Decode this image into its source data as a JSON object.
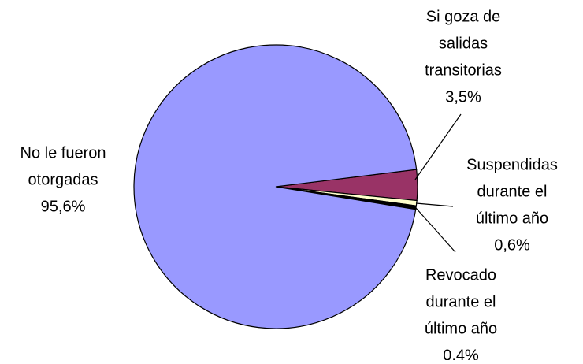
{
  "chart_data": {
    "type": "pie",
    "labels": [
      [
        "Si goza de",
        "salidas",
        "transitorias"
      ],
      [
        "Suspendidas",
        "durante el",
        "último año"
      ],
      [
        "Revocado",
        "durante el",
        "último año"
      ],
      [
        "No le fueron",
        "otorgadas"
      ]
    ],
    "values": [
      3.5,
      0.6,
      0.4,
      95.6
    ],
    "value_labels": [
      "3,5%",
      "0,6%",
      "0,4%",
      "95,6%"
    ],
    "colors": [
      "#993366",
      "#ffffcc",
      "#000000",
      "#9999ff"
    ]
  }
}
